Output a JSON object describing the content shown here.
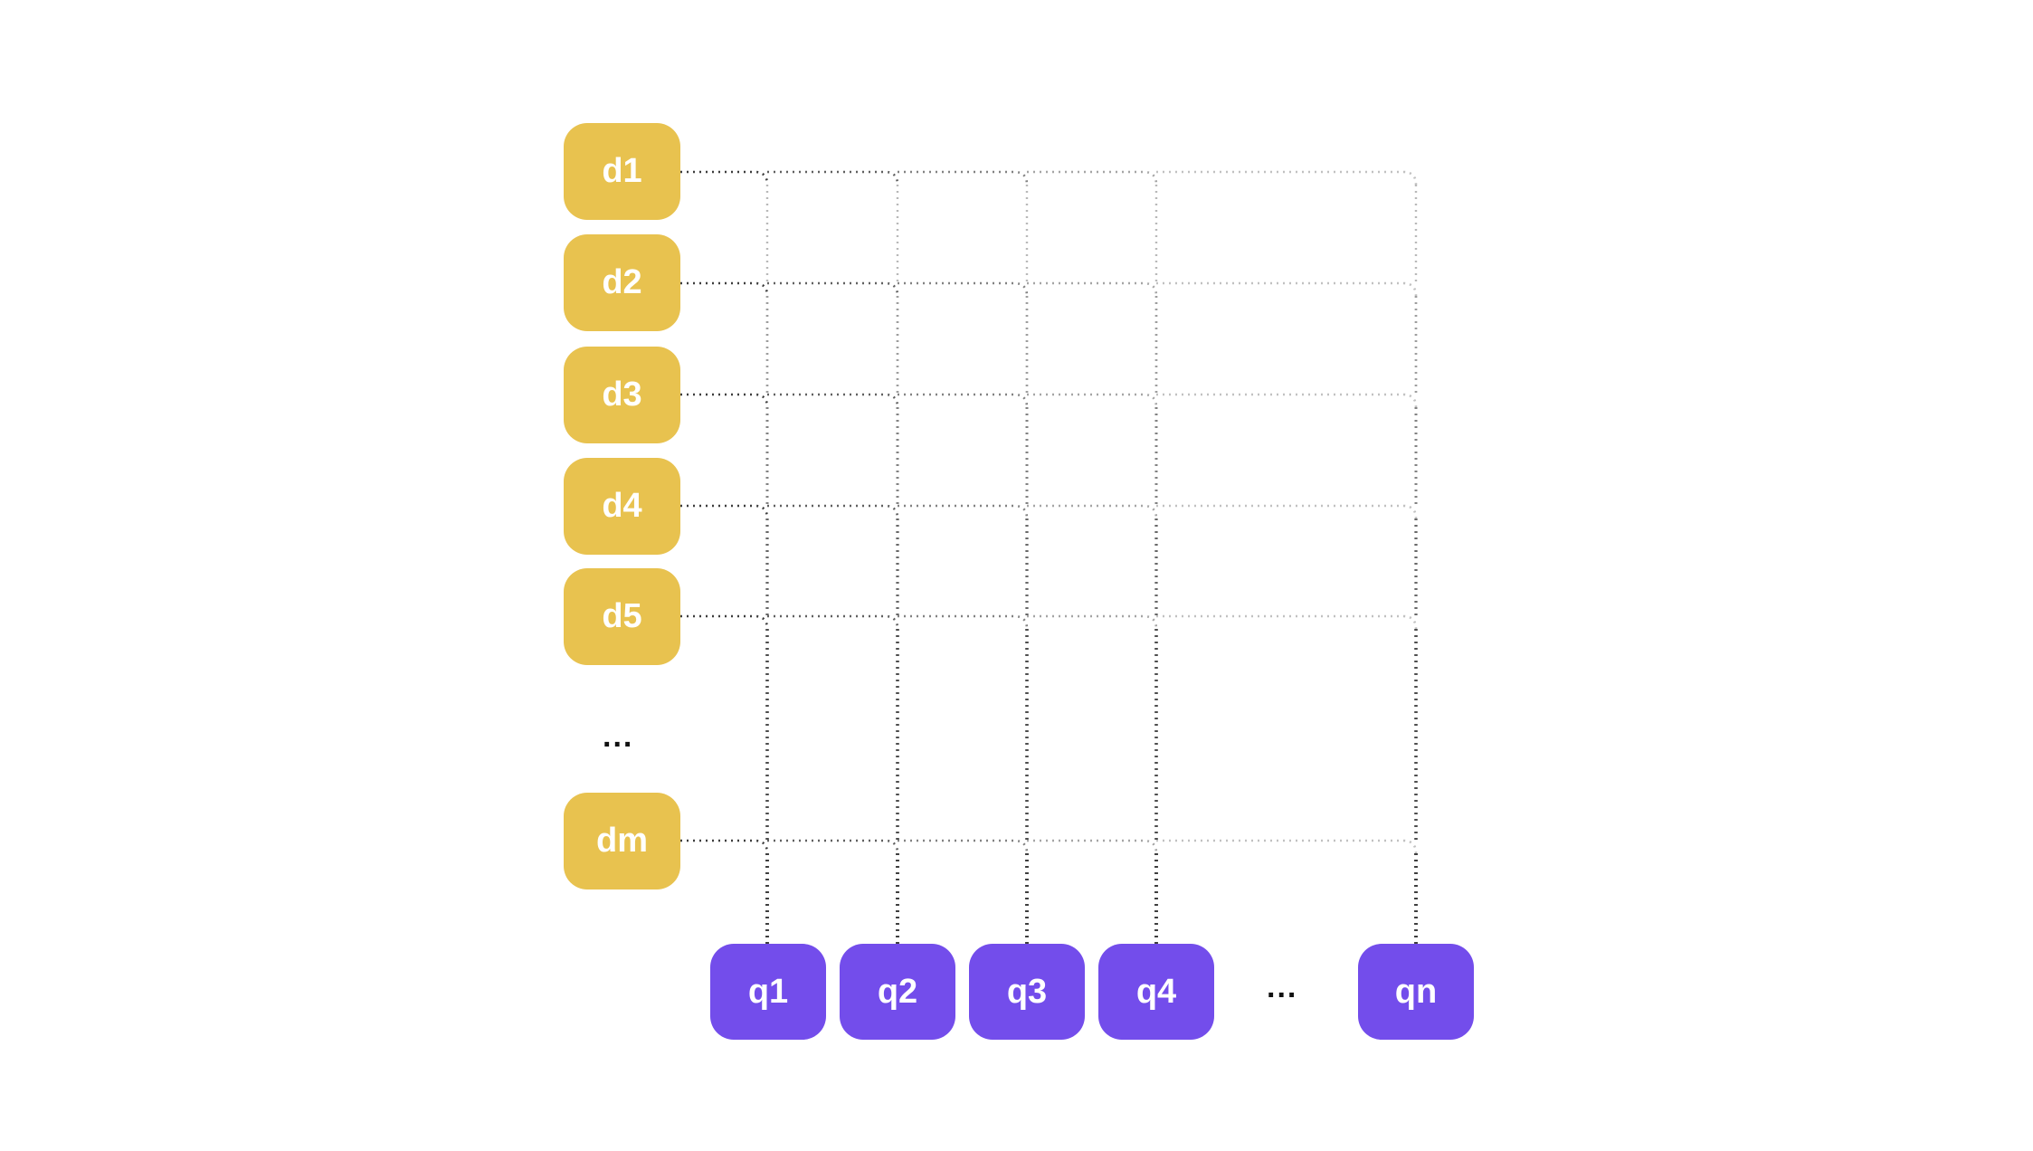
{
  "colors": {
    "document": "#E8C24F",
    "query": "#734DEB",
    "line": "#333333"
  },
  "documents": [
    "d1",
    "d2",
    "d3",
    "d4",
    "d5",
    "dm"
  ],
  "documents_ellipsis": "...",
  "queries": [
    "q1",
    "q2",
    "q3",
    "q4",
    "qn"
  ],
  "queries_ellipsis": "..."
}
